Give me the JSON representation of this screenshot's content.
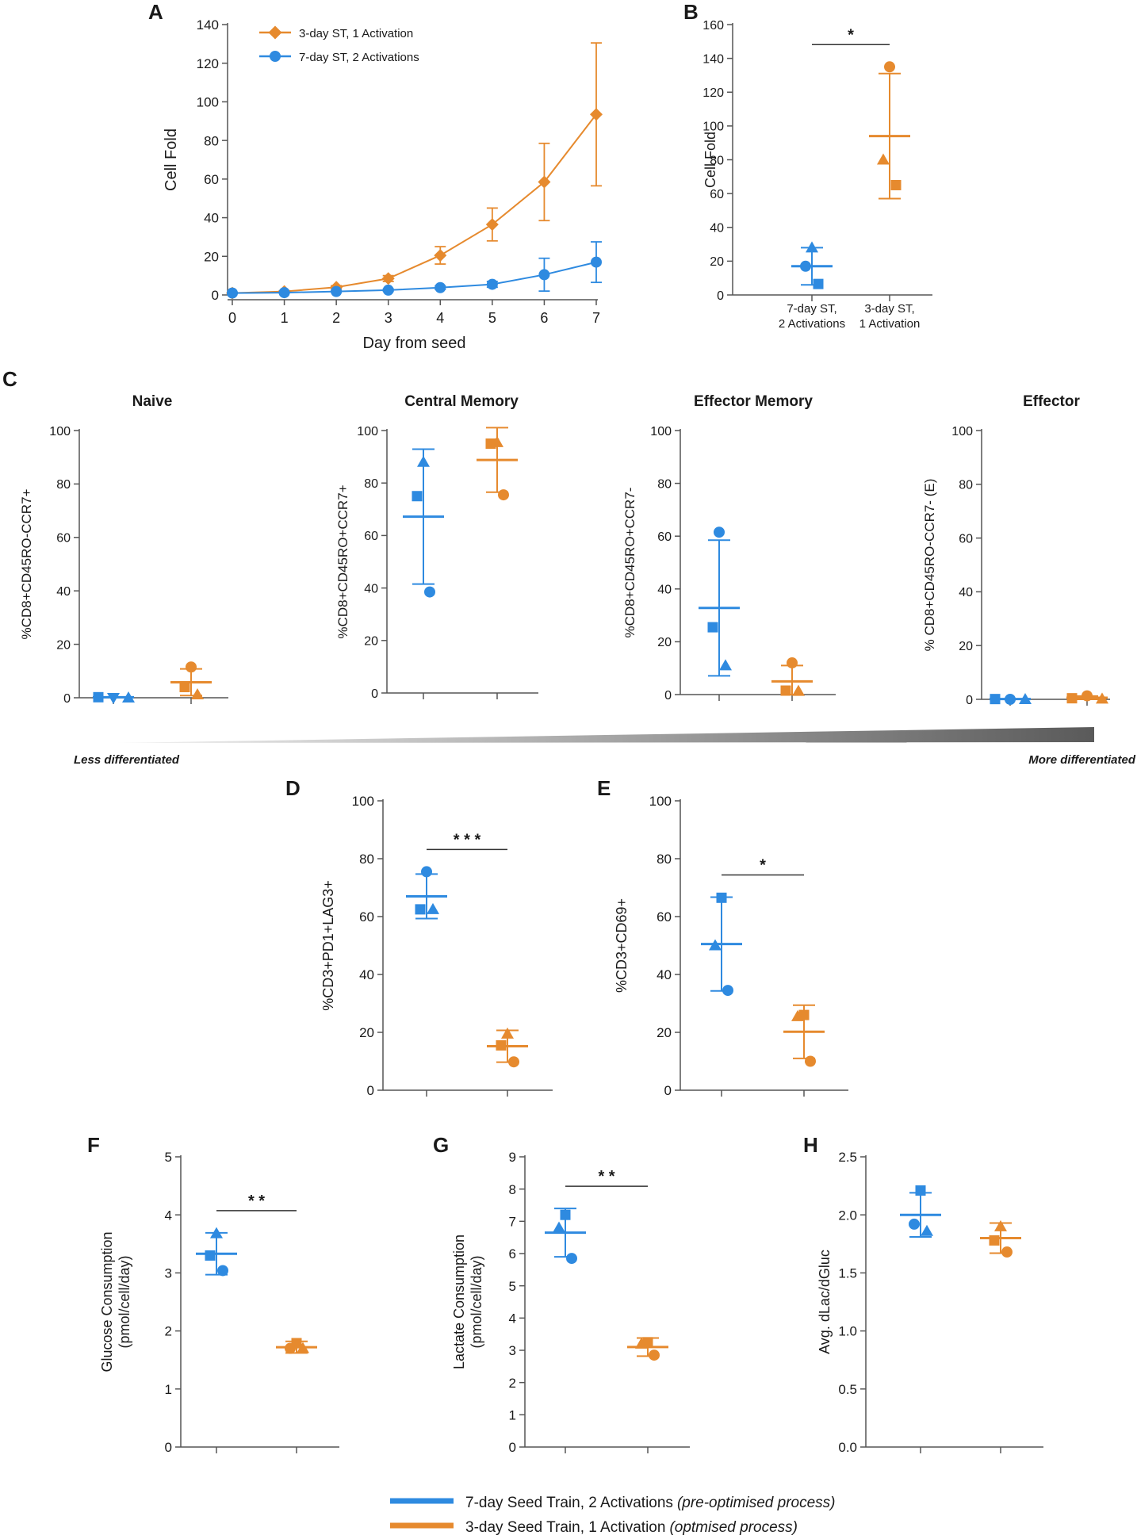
{
  "colors": {
    "seven_day": "#2e8ae0",
    "three_day": "#e68a2e",
    "axis": "#555555"
  },
  "panels": {
    "A": {
      "letter": "A",
      "legend": [
        "3-day ST, 1 Activation",
        "7-day ST, 2 Activations"
      ]
    },
    "B": {
      "letter": "B"
    },
    "C": {
      "letter": "C",
      "titles": [
        "Naive",
        "Central Memory",
        "Effector Memory",
        "Effector"
      ]
    },
    "D": {
      "letter": "D"
    },
    "E": {
      "letter": "E"
    },
    "F": {
      "letter": "F"
    },
    "G": {
      "letter": "G"
    },
    "H": {
      "letter": "H"
    }
  },
  "gradient": {
    "left": "Less differentiated",
    "right": "More differentiated"
  },
  "bottom_legend": [
    {
      "label": "7-day Seed Train, 2 Activations",
      "note": "(pre-optimised process)",
      "color": "#2e8ae0"
    },
    {
      "label": "3-day Seed Train, 1 Activation",
      "note": "(optmised process)",
      "color": "#e68a2e"
    }
  ],
  "chart_data": [
    {
      "id": "A",
      "type": "line",
      "xlabel": "Day from seed",
      "ylabel": "Cell Fold",
      "x": [
        0,
        1,
        2,
        3,
        4,
        5,
        6,
        7
      ],
      "xlim": [
        0,
        7
      ],
      "ylim": [
        0,
        140
      ],
      "xticks": [
        "0",
        "1",
        "2",
        "3",
        "4",
        "5",
        "6",
        "7"
      ],
      "yticks": [
        "0",
        "20",
        "40",
        "60",
        "80",
        "100",
        "120",
        "140"
      ],
      "legend_position": "top-left",
      "series": [
        {
          "name": "3-day ST, 1 Activation",
          "color": "#e68a2e",
          "marker": "diamond",
          "values": [
            1,
            1.8,
            4,
            8.5,
            20.5,
            36.5,
            58.5,
            93.5
          ],
          "error": [
            0.3,
            0.4,
            0.8,
            1.5,
            4.5,
            8.5,
            20,
            37
          ]
        },
        {
          "name": "7-day ST, 2 Activations",
          "color": "#2e8ae0",
          "marker": "circle",
          "values": [
            1,
            1.2,
            1.8,
            2.5,
            3.8,
            5.5,
            10.5,
            17
          ],
          "error": [
            0.2,
            0.3,
            0.4,
            0.6,
            0.9,
            1.5,
            8.5,
            10.5
          ]
        }
      ]
    },
    {
      "id": "B",
      "type": "scatter",
      "ylabel": "Cell Fold",
      "ylim": [
        0,
        160
      ],
      "yticks": [
        "0",
        "20",
        "40",
        "60",
        "80",
        "100",
        "120",
        "140",
        "160"
      ],
      "categories": [
        "7-day ST,\n2 Activations",
        "3-day ST,\n1 Activation"
      ],
      "category_labels_visible": true,
      "significance": "*",
      "groups": [
        {
          "color": "#2e8ae0",
          "mean": 17,
          "sd": 11,
          "points": [
            {
              "v": 28,
              "m": "triangle"
            },
            {
              "v": 17,
              "m": "circle"
            },
            {
              "v": 6.5,
              "m": "square"
            }
          ]
        },
        {
          "color": "#e68a2e",
          "mean": 94,
          "sd": 37,
          "points": [
            {
              "v": 135,
              "m": "circle"
            },
            {
              "v": 80,
              "m": "triangle"
            },
            {
              "v": 65,
              "m": "square"
            }
          ]
        }
      ]
    },
    {
      "id": "C-naive",
      "type": "scatter",
      "ylabel": "%CD8+CD45RO-CCR7+",
      "ylim": [
        0,
        100
      ],
      "yticks": [
        "0",
        "20",
        "40",
        "60",
        "80",
        "100"
      ],
      "groups": [
        {
          "color": "#2e8ae0",
          "mean": 0.2,
          "sd": 0,
          "spread": "horizontal",
          "points": [
            {
              "v": 0.2,
              "m": "square"
            },
            {
              "v": 0,
              "m": "triangle-down"
            },
            {
              "v": 0,
              "m": "triangle"
            }
          ]
        },
        {
          "color": "#e68a2e",
          "mean": 5.8,
          "sd": 5,
          "points": [
            {
              "v": 11.5,
              "m": "circle"
            },
            {
              "v": 4,
              "m": "square"
            },
            {
              "v": 1.2,
              "m": "triangle"
            }
          ]
        }
      ]
    },
    {
      "id": "C-central-memory",
      "type": "scatter",
      "ylabel": "%CD8+CD45RO+CCR7+",
      "ylim": [
        0,
        100
      ],
      "yticks": [
        "0",
        "20",
        "40",
        "60",
        "80",
        "100"
      ],
      "groups": [
        {
          "color": "#2e8ae0",
          "mean": 67.2,
          "sd": 25.7,
          "points": [
            {
              "v": 88,
              "m": "triangle"
            },
            {
              "v": 75,
              "m": "square"
            },
            {
              "v": 38.5,
              "m": "circle"
            }
          ]
        },
        {
          "color": "#e68a2e",
          "mean": 88.8,
          "sd": 12.3,
          "points": [
            {
              "v": 95.5,
              "m": "triangle"
            },
            {
              "v": 95,
              "m": "square"
            },
            {
              "v": 75.5,
              "m": "circle"
            }
          ]
        }
      ]
    },
    {
      "id": "C-effector-memory",
      "type": "scatter",
      "ylabel": "%CD8+CD45RO+CCR7-",
      "ylim": [
        0,
        100
      ],
      "yticks": [
        "0",
        "20",
        "40",
        "60",
        "80",
        "100"
      ],
      "groups": [
        {
          "color": "#2e8ae0",
          "mean": 32.8,
          "sd": 25.7,
          "points": [
            {
              "v": 61.5,
              "m": "circle"
            },
            {
              "v": 25.5,
              "m": "square"
            },
            {
              "v": 11,
              "m": "triangle"
            }
          ]
        },
        {
          "color": "#e68a2e",
          "mean": 5,
          "sd": 6,
          "points": [
            {
              "v": 12,
              "m": "circle"
            },
            {
              "v": 1.5,
              "m": "square"
            },
            {
              "v": 1.3,
              "m": "triangle"
            }
          ]
        }
      ]
    },
    {
      "id": "C-effector",
      "type": "scatter",
      "ylabel": "% CD8+CD45RO-CCR7- (E)",
      "ylim": [
        0,
        100
      ],
      "yticks": [
        "0",
        "20",
        "40",
        "60",
        "80",
        "100"
      ],
      "groups": [
        {
          "color": "#2e8ae0",
          "mean": 0.1,
          "sd": 0,
          "spread": "horizontal",
          "points": [
            {
              "v": 0.1,
              "m": "square"
            },
            {
              "v": 0,
              "m": "circle"
            },
            {
              "v": 0,
              "m": "triangle"
            }
          ]
        },
        {
          "color": "#e68a2e",
          "mean": 0.6,
          "sd": 0.6,
          "spread": "horizontal",
          "points": [
            {
              "v": 0.4,
              "m": "square"
            },
            {
              "v": 1.3,
              "m": "circle"
            },
            {
              "v": 0.2,
              "m": "triangle"
            }
          ]
        }
      ]
    },
    {
      "id": "D",
      "type": "scatter",
      "ylabel": "%CD3+PD1+LAG3+",
      "ylim": [
        0,
        100
      ],
      "yticks": [
        "0",
        "20",
        "40",
        "60",
        "80",
        "100"
      ],
      "significance": "* * *",
      "groups": [
        {
          "color": "#2e8ae0",
          "mean": 67,
          "sd": 7.7,
          "points": [
            {
              "v": 75.5,
              "m": "circle"
            },
            {
              "v": 62.5,
              "m": "square"
            },
            {
              "v": 62.5,
              "m": "triangle"
            }
          ]
        },
        {
          "color": "#e68a2e",
          "mean": 15.2,
          "sd": 5.5,
          "points": [
            {
              "v": 19.5,
              "m": "triangle"
            },
            {
              "v": 15.5,
              "m": "square"
            },
            {
              "v": 9.8,
              "m": "circle"
            }
          ]
        }
      ]
    },
    {
      "id": "E",
      "type": "scatter",
      "ylabel": "%CD3+CD69+",
      "ylim": [
        0,
        100
      ],
      "yticks": [
        "0",
        "20",
        "40",
        "60",
        "80",
        "100"
      ],
      "significance": "*",
      "groups": [
        {
          "color": "#2e8ae0",
          "mean": 50.5,
          "sd": 16.2,
          "points": [
            {
              "v": 66.5,
              "m": "square"
            },
            {
              "v": 50,
              "m": "triangle"
            },
            {
              "v": 34.5,
              "m": "circle"
            }
          ]
        },
        {
          "color": "#e68a2e",
          "mean": 20.2,
          "sd": 9.2,
          "points": [
            {
              "v": 26,
              "m": "square"
            },
            {
              "v": 25.5,
              "m": "triangle"
            },
            {
              "v": 10,
              "m": "circle"
            }
          ]
        }
      ]
    },
    {
      "id": "F",
      "type": "scatter",
      "ylabel": "Glucose Consumption\n(pmol/cell/day)",
      "ylim": [
        0,
        5
      ],
      "yticks": [
        "0",
        "1",
        "2",
        "3",
        "4",
        "5"
      ],
      "significance": "* *",
      "groups": [
        {
          "color": "#2e8ae0",
          "mean": 3.33,
          "sd": 0.36,
          "points": [
            {
              "v": 3.68,
              "m": "triangle"
            },
            {
              "v": 3.3,
              "m": "square"
            },
            {
              "v": 3.04,
              "m": "circle"
            }
          ]
        },
        {
          "color": "#e68a2e",
          "mean": 1.72,
          "sd": 0.1,
          "points": [
            {
              "v": 1.79,
              "m": "square"
            },
            {
              "v": 1.7,
              "m": "circle"
            },
            {
              "v": 1.7,
              "m": "triangle"
            }
          ]
        }
      ]
    },
    {
      "id": "G",
      "type": "scatter",
      "ylabel": "Lactate Consumption\n(pmol/cell/day)",
      "ylim": [
        0,
        9
      ],
      "yticks": [
        "0",
        "1",
        "2",
        "3",
        "4",
        "5",
        "6",
        "7",
        "8",
        "9"
      ],
      "significance": "* *",
      "groups": [
        {
          "color": "#2e8ae0",
          "mean": 6.65,
          "sd": 0.75,
          "points": [
            {
              "v": 7.2,
              "m": "square"
            },
            {
              "v": 6.8,
              "m": "triangle"
            },
            {
              "v": 5.85,
              "m": "circle"
            }
          ]
        },
        {
          "color": "#e68a2e",
          "mean": 3.1,
          "sd": 0.28,
          "points": [
            {
              "v": 3.25,
              "m": "square"
            },
            {
              "v": 3.2,
              "m": "triangle"
            },
            {
              "v": 2.85,
              "m": "circle"
            }
          ]
        }
      ]
    },
    {
      "id": "H",
      "type": "scatter",
      "ylabel": "Avg. dLac/dGluc",
      "ylim": [
        0,
        2.5
      ],
      "yticks": [
        "0.0",
        "0.5",
        "1.0",
        "1.5",
        "2.0",
        "2.5"
      ],
      "groups": [
        {
          "color": "#2e8ae0",
          "mean": 2.0,
          "sd": 0.19,
          "points": [
            {
              "v": 2.21,
              "m": "square"
            },
            {
              "v": 1.92,
              "m": "circle"
            },
            {
              "v": 1.86,
              "m": "triangle"
            }
          ]
        },
        {
          "color": "#e68a2e",
          "mean": 1.8,
          "sd": 0.13,
          "points": [
            {
              "v": 1.9,
              "m": "triangle"
            },
            {
              "v": 1.78,
              "m": "square"
            },
            {
              "v": 1.68,
              "m": "circle"
            }
          ]
        }
      ]
    }
  ]
}
